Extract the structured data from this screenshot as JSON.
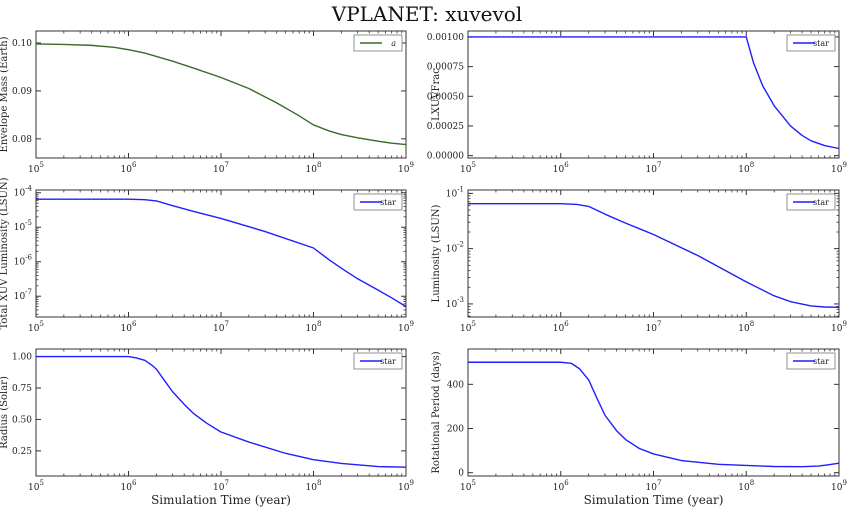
{
  "figure": {
    "suptitle": "VPLANET: xuvevol",
    "background": "#ffffff",
    "axes_color": "#333333"
  },
  "chart_data": [
    {
      "type": "line",
      "ylabel": "Envelope Mass (Earth)",
      "xlabel": "",
      "xscale": "log",
      "xlim": [
        100000,
        1000000000
      ],
      "yscale": "linear",
      "ylim": [
        0.076,
        0.1025
      ],
      "xticks": [
        {
          "value": 100000,
          "base": "10",
          "exp": "5"
        },
        {
          "value": 1000000,
          "base": "10",
          "exp": "6"
        },
        {
          "value": 10000000,
          "base": "10",
          "exp": "7"
        },
        {
          "value": 100000000,
          "base": "10",
          "exp": "8"
        },
        {
          "value": 1000000000,
          "base": "10",
          "exp": "9"
        }
      ],
      "yticks": [
        {
          "value": 0.08,
          "label": "0.08"
        },
        {
          "value": 0.09,
          "label": "0.09"
        },
        {
          "value": 0.1,
          "label": "0.10"
        }
      ],
      "legend": "top-right",
      "series": [
        {
          "name": "a",
          "color": "#3a6b2a",
          "x": [
            100000,
            200000,
            400000,
            700000,
            1000000,
            1500000,
            2000000,
            3000000,
            5000000,
            10000000,
            20000000,
            40000000,
            70000000,
            100000000,
            150000000,
            200000000,
            300000000,
            500000000,
            700000000,
            1000000000
          ],
          "y": [
            0.0998,
            0.0997,
            0.0995,
            0.0991,
            0.0986,
            0.0979,
            0.0972,
            0.0962,
            0.0948,
            0.0928,
            0.0905,
            0.0875,
            0.0848,
            0.0829,
            0.0816,
            0.0809,
            0.0802,
            0.0795,
            0.0791,
            0.0788
          ]
        }
      ]
    },
    {
      "type": "line",
      "ylabel": "LXUVFrac",
      "xlabel": "",
      "xscale": "log",
      "xlim": [
        100000,
        1000000000
      ],
      "yscale": "linear",
      "ylim": [
        -2e-05,
        0.00105
      ],
      "xticks": [
        {
          "value": 100000,
          "base": "10",
          "exp": "5"
        },
        {
          "value": 1000000,
          "base": "10",
          "exp": "6"
        },
        {
          "value": 10000000,
          "base": "10",
          "exp": "7"
        },
        {
          "value": 100000000,
          "base": "10",
          "exp": "8"
        },
        {
          "value": 1000000000,
          "base": "10",
          "exp": "9"
        }
      ],
      "yticks": [
        {
          "value": 0,
          "label": "0.00000"
        },
        {
          "value": 0.00025,
          "label": "0.00025"
        },
        {
          "value": 0.0005,
          "label": "0.00050"
        },
        {
          "value": 0.00075,
          "label": "0.00075"
        },
        {
          "value": 0.001,
          "label": "0.00100"
        }
      ],
      "legend": "top-right",
      "series": [
        {
          "name": "star",
          "color": "#1f1fff",
          "x": [
            100000,
            1000000,
            10000000,
            100000000,
            120000000,
            150000000,
            200000000,
            300000000,
            400000000,
            500000000,
            700000000,
            1000000000
          ],
          "y": [
            0.001,
            0.001,
            0.001,
            0.001,
            0.00078,
            0.00059,
            0.00042,
            0.00025,
            0.00017,
            0.000125,
            8.5e-05,
            6e-05
          ]
        }
      ]
    },
    {
      "type": "line",
      "ylabel": "Total XUV Luminosity (LSUN)",
      "xlabel": "",
      "xscale": "log",
      "xlim": [
        100000,
        1000000000
      ],
      "yscale": "log",
      "ylim": [
        2.5e-08,
        0.00012
      ],
      "xticks": [
        {
          "value": 100000,
          "base": "10",
          "exp": "5"
        },
        {
          "value": 1000000,
          "base": "10",
          "exp": "6"
        },
        {
          "value": 10000000,
          "base": "10",
          "exp": "7"
        },
        {
          "value": 100000000,
          "base": "10",
          "exp": "8"
        },
        {
          "value": 1000000000,
          "base": "10",
          "exp": "9"
        }
      ],
      "yticks": [
        {
          "value": 1e-07,
          "base": "10",
          "exp": "-7"
        },
        {
          "value": 1e-06,
          "base": "10",
          "exp": "-6"
        },
        {
          "value": 1e-05,
          "base": "10",
          "exp": "-5"
        },
        {
          "value": 0.0001,
          "base": "10",
          "exp": "-4"
        }
      ],
      "legend": "top-right",
      "series": [
        {
          "name": "star",
          "color": "#1f1fff",
          "x": [
            100000,
            1000000,
            1500000,
            2000000,
            3000000,
            5000000,
            10000000,
            30000000,
            100000000,
            150000000,
            200000000,
            300000000,
            500000000,
            700000000,
            1000000000
          ],
          "y": [
            6.5e-05,
            6.5e-05,
            6.3e-05,
            5.8e-05,
            4.2e-05,
            2.9e-05,
            1.8e-05,
            7.5e-06,
            2.5e-06,
            1.1e-06,
            6.5e-07,
            3.2e-07,
            1.5e-07,
            9e-08,
            5e-08
          ]
        }
      ]
    },
    {
      "type": "line",
      "ylabel": "Luminosity (LSUN)",
      "xlabel": "",
      "xscale": "log",
      "xlim": [
        100000,
        1000000000
      ],
      "yscale": "log",
      "ylim": [
        0.00058,
        0.115
      ],
      "xticks": [
        {
          "value": 100000,
          "base": "10",
          "exp": "5"
        },
        {
          "value": 1000000,
          "base": "10",
          "exp": "6"
        },
        {
          "value": 10000000,
          "base": "10",
          "exp": "7"
        },
        {
          "value": 100000000,
          "base": "10",
          "exp": "8"
        },
        {
          "value": 1000000000,
          "base": "10",
          "exp": "9"
        }
      ],
      "yticks": [
        {
          "value": 0.001,
          "base": "10",
          "exp": "-3"
        },
        {
          "value": 0.01,
          "base": "10",
          "exp": "-2"
        },
        {
          "value": 0.1,
          "base": "10",
          "exp": "-1"
        }
      ],
      "legend": "top-right",
      "series": [
        {
          "name": "star",
          "color": "#1f1fff",
          "x": [
            100000,
            1000000,
            1500000,
            2000000,
            3000000,
            5000000,
            10000000,
            30000000,
            100000000,
            200000000,
            300000000,
            500000000,
            700000000,
            1000000000
          ],
          "y": [
            0.065,
            0.065,
            0.063,
            0.058,
            0.042,
            0.029,
            0.018,
            0.0075,
            0.0025,
            0.0014,
            0.0011,
            0.00092,
            0.00088,
            0.00087
          ]
        }
      ]
    },
    {
      "type": "line",
      "ylabel": "Radius (Solar)",
      "xlabel": "Simulation Time (year)",
      "xscale": "log",
      "xlim": [
        100000,
        1000000000
      ],
      "yscale": "linear",
      "ylim": [
        0.05,
        1.06
      ],
      "xticks": [
        {
          "value": 100000,
          "base": "10",
          "exp": "5"
        },
        {
          "value": 1000000,
          "base": "10",
          "exp": "6"
        },
        {
          "value": 10000000,
          "base": "10",
          "exp": "7"
        },
        {
          "value": 100000000,
          "base": "10",
          "exp": "8"
        },
        {
          "value": 1000000000,
          "base": "10",
          "exp": "9"
        }
      ],
      "yticks": [
        {
          "value": 0.25,
          "label": "0.25"
        },
        {
          "value": 0.5,
          "label": "0.50"
        },
        {
          "value": 0.75,
          "label": "0.75"
        },
        {
          "value": 1.0,
          "label": "1.00"
        }
      ],
      "legend": "top-right",
      "series": [
        {
          "name": "star",
          "color": "#1f1fff",
          "x": [
            100000,
            1000000,
            1200000,
            1500000,
            1800000,
            2000000,
            2500000,
            3000000,
            4000000,
            5000000,
            7000000,
            10000000,
            20000000,
            50000000,
            100000000,
            200000000,
            500000000,
            1000000000
          ],
          "y": [
            1.0,
            1.0,
            0.99,
            0.97,
            0.93,
            0.9,
            0.8,
            0.72,
            0.62,
            0.55,
            0.47,
            0.4,
            0.32,
            0.23,
            0.18,
            0.15,
            0.125,
            0.12
          ]
        }
      ]
    },
    {
      "type": "line",
      "ylabel": "Rotational Period (days)",
      "xlabel": "Simulation Time (year)",
      "xscale": "log",
      "xlim": [
        100000,
        1000000000
      ],
      "yscale": "linear",
      "ylim": [
        -15,
        560
      ],
      "xticks": [
        {
          "value": 100000,
          "base": "10",
          "exp": "5"
        },
        {
          "value": 1000000,
          "base": "10",
          "exp": "6"
        },
        {
          "value": 10000000,
          "base": "10",
          "exp": "7"
        },
        {
          "value": 100000000,
          "base": "10",
          "exp": "8"
        },
        {
          "value": 1000000000,
          "base": "10",
          "exp": "9"
        }
      ],
      "yticks": [
        {
          "value": 0,
          "label": "0"
        },
        {
          "value": 200,
          "label": "200"
        },
        {
          "value": 400,
          "label": "400"
        }
      ],
      "legend": "top-right",
      "series": [
        {
          "name": "star",
          "color": "#1f1fff",
          "x": [
            100000,
            1000000,
            1300000,
            1600000,
            2000000,
            2500000,
            3000000,
            4000000,
            5000000,
            7000000,
            10000000,
            20000000,
            50000000,
            100000000,
            200000000,
            400000000,
            600000000,
            800000000,
            1000000000
          ],
          "y": [
            500,
            500,
            495,
            470,
            420,
            330,
            260,
            190,
            150,
            110,
            85,
            55,
            38,
            33,
            28,
            27,
            30,
            37,
            43
          ]
        }
      ]
    }
  ]
}
